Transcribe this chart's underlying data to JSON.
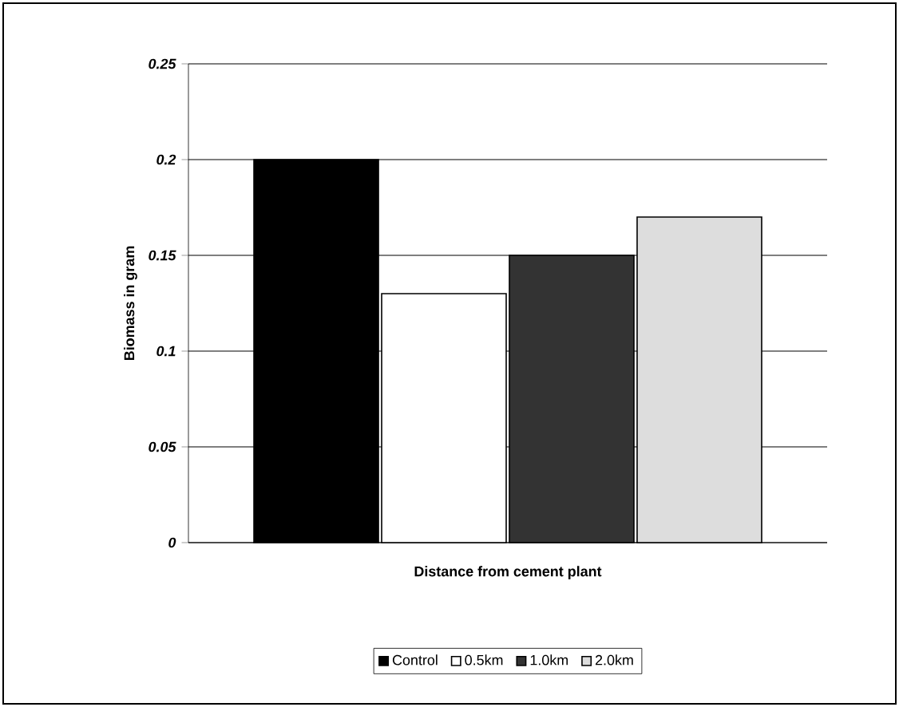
{
  "chart_data": {
    "type": "bar",
    "xlabel": "Distance from cement plant",
    "ylabel": "Biomass in gram",
    "categories": [
      null
    ],
    "series": [
      {
        "name": "Control",
        "color": "#000000",
        "values": [
          0.2
        ]
      },
      {
        "name": "0.5km",
        "color": "#ffffff",
        "values": [
          0.13
        ]
      },
      {
        "name": "1.0km",
        "color": "#333333",
        "values": [
          0.15
        ]
      },
      {
        "name": "2.0km",
        "color": "#dddddd",
        "values": [
          0.17
        ]
      }
    ],
    "ylim": [
      0,
      0.25
    ],
    "yticks": [
      0,
      0.05,
      0.1,
      0.15,
      0.2,
      0.25
    ],
    "grid": "y",
    "legend": "bottom"
  }
}
